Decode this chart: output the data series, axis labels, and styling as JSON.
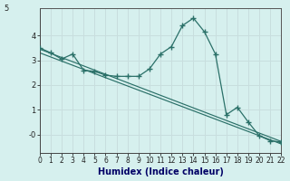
{
  "xlabel": "Humidex (Indice chaleur)",
  "bg_color": "#d6f0ee",
  "line_color": "#2a7068",
  "grid_color": "#c8dede",
  "axis_color": "#555555",
  "xlim": [
    0,
    22
  ],
  "ylim": [
    -0.75,
    5.1
  ],
  "xticks": [
    0,
    1,
    2,
    3,
    4,
    5,
    6,
    7,
    8,
    9,
    10,
    11,
    12,
    13,
    14,
    15,
    16,
    17,
    18,
    19,
    20,
    21,
    22
  ],
  "yticks": [
    0,
    1,
    2,
    3,
    4
  ],
  "ytick_labels": [
    "-0",
    "1",
    "2",
    "3",
    "4"
  ],
  "y5_label": "5",
  "main_x": [
    0,
    1,
    2,
    3,
    4,
    5,
    6,
    7,
    8,
    9,
    10,
    11,
    12,
    13,
    14,
    15,
    16,
    17,
    18,
    19,
    20,
    21,
    22
  ],
  "main_y": [
    3.5,
    3.3,
    3.05,
    3.25,
    2.6,
    2.55,
    2.4,
    2.35,
    2.35,
    2.35,
    2.65,
    3.25,
    3.55,
    4.4,
    4.7,
    4.15,
    3.25,
    0.8,
    1.1,
    0.5,
    -0.05,
    -0.25,
    -0.3
  ],
  "trend1_x": [
    0,
    22
  ],
  "trend1_y": [
    3.45,
    -0.28
  ],
  "trend2_x": [
    0,
    22
  ],
  "trend2_y": [
    3.3,
    -0.38
  ],
  "xlabel_color": "#000066",
  "xlabel_fontsize": 7,
  "tick_fontsize": 5.5,
  "ylabel_fontsize": 6
}
